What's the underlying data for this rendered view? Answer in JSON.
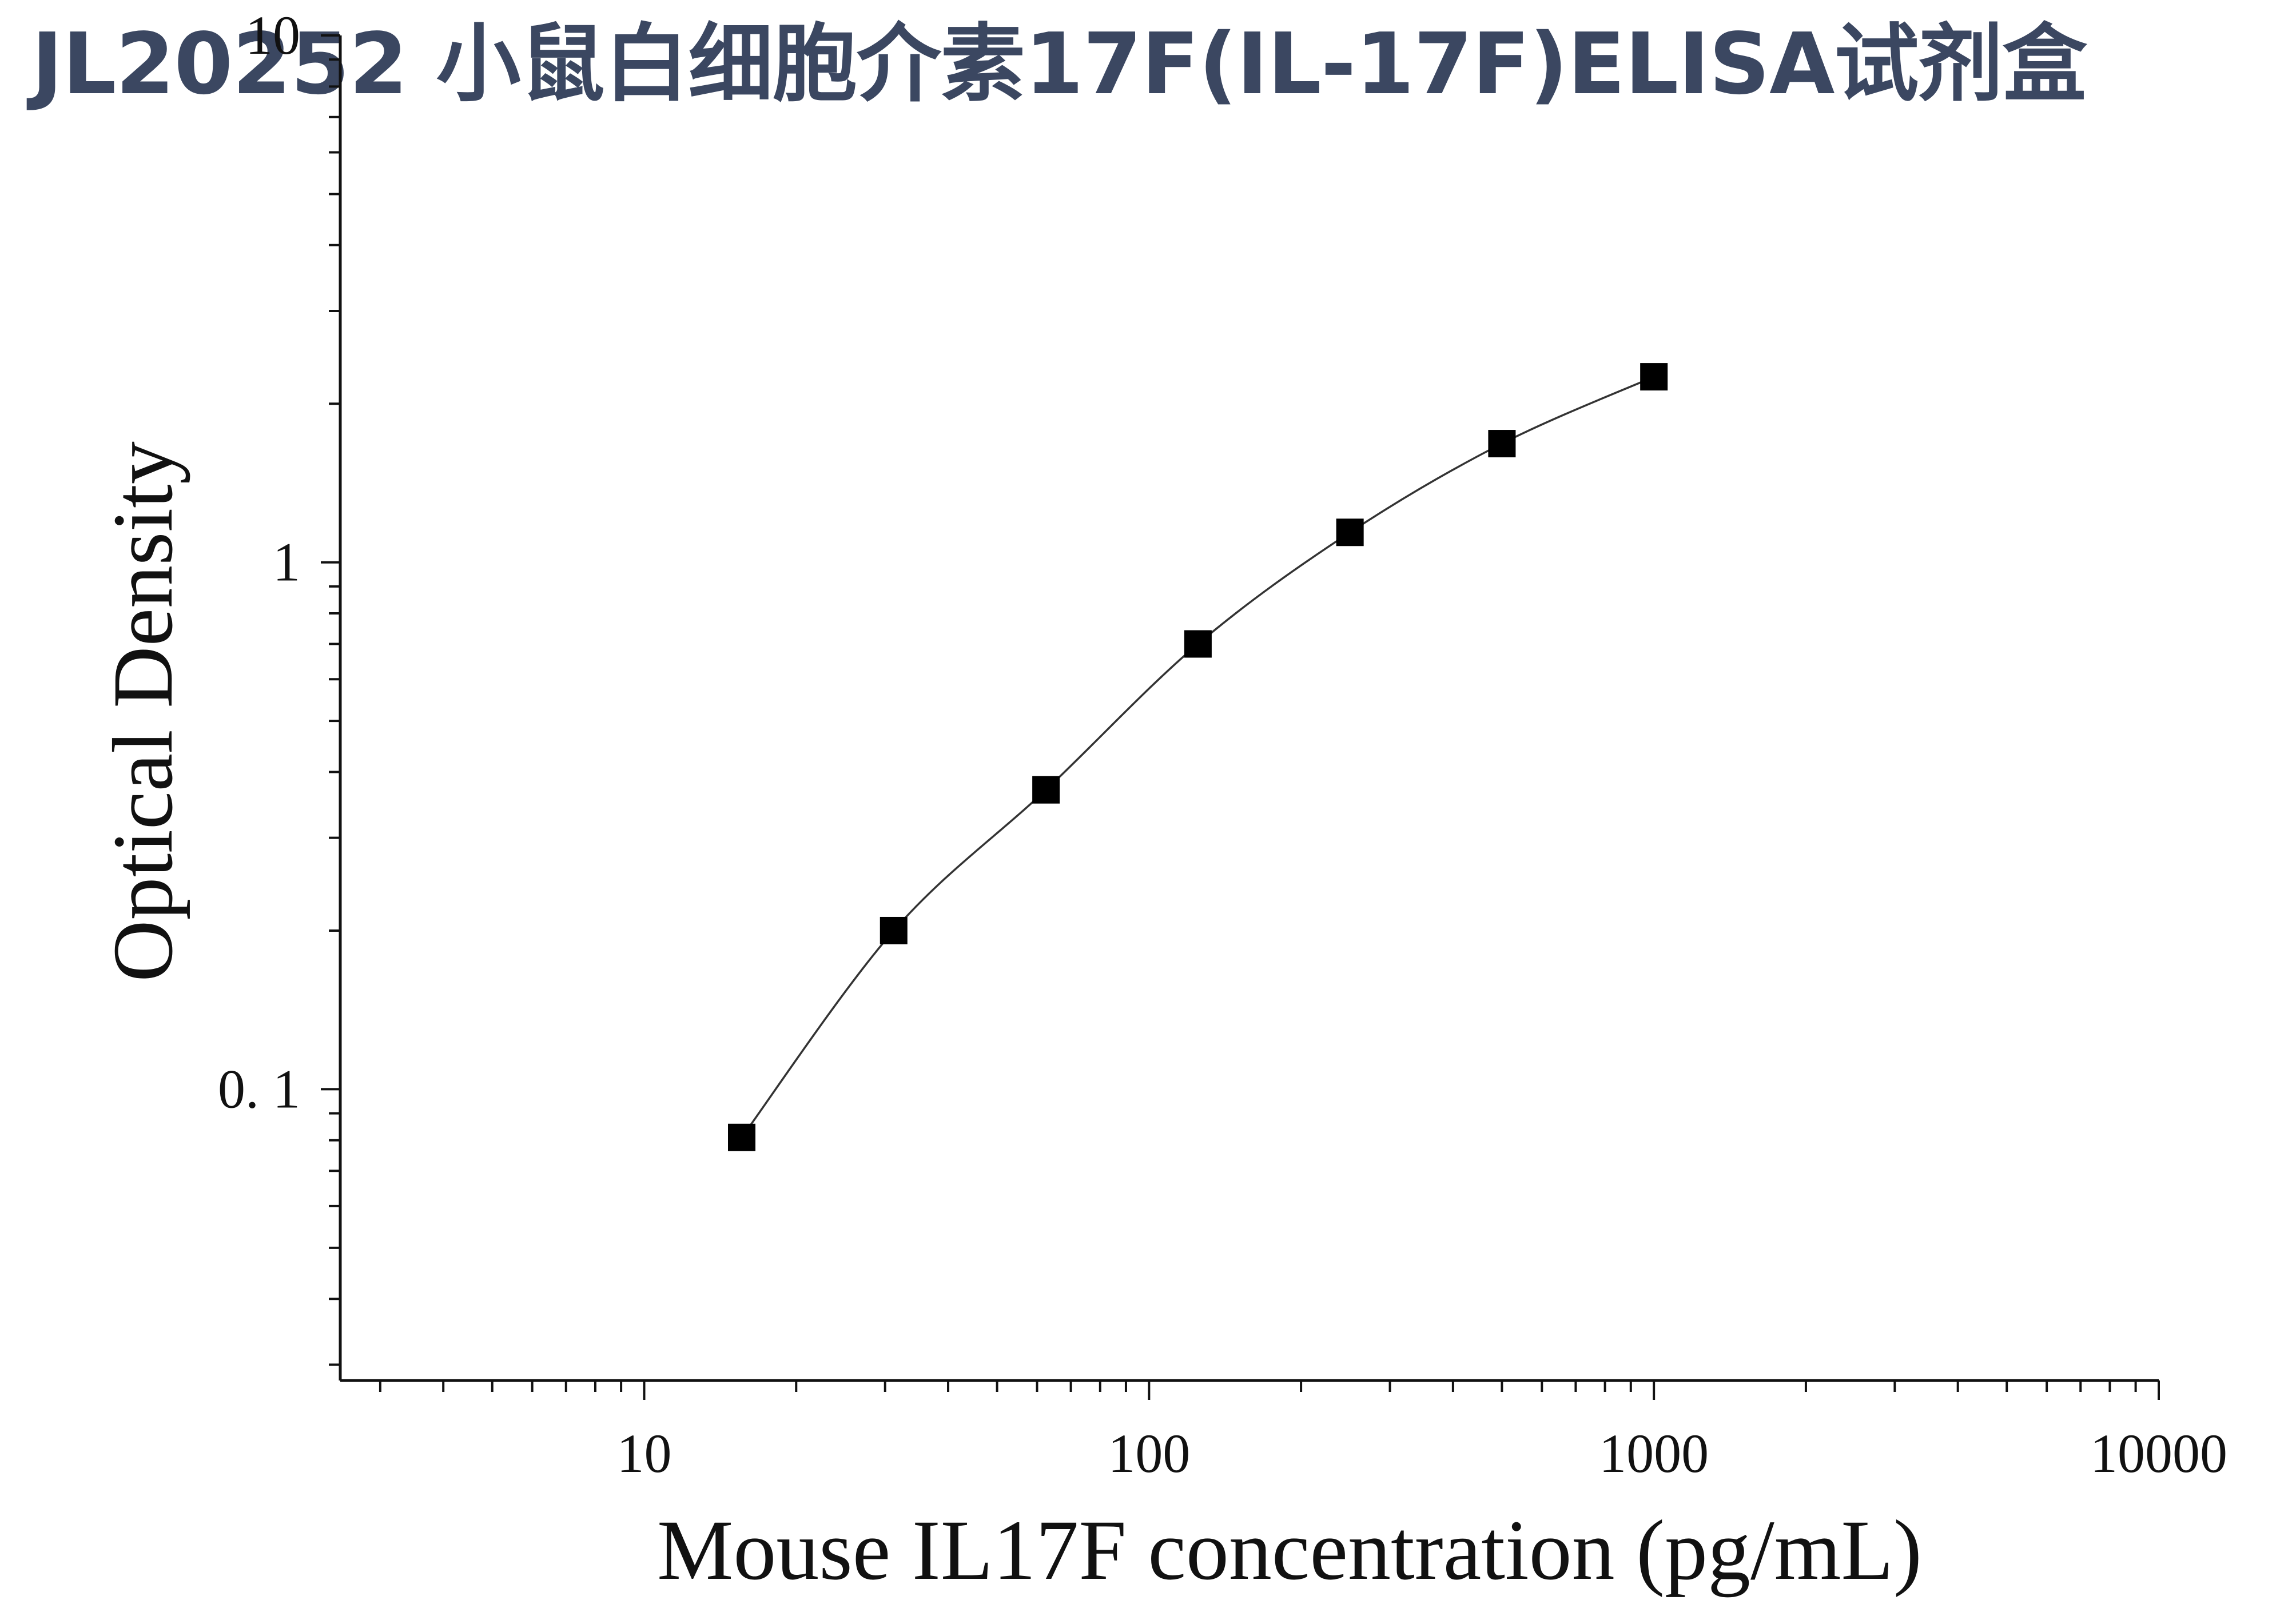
{
  "banner": {
    "title": "JL20252 小鼠白细胞介素17F(IL-17F)ELISA试剂盒",
    "color": "#3b4761"
  },
  "chart_data": {
    "type": "scatter",
    "title": "",
    "xlabel": "Mouse IL17F concentration (pg/mL)",
    "ylabel": "Optical Density",
    "x_scale": "log",
    "y_scale": "log",
    "xlim": [
      2.5,
      10000
    ],
    "ylim": [
      0.028,
      10
    ],
    "x_ticks": [
      10,
      100,
      1000,
      10000
    ],
    "x_tick_labels": [
      "10",
      "100",
      "1000",
      "10000"
    ],
    "y_ticks": [
      0.1,
      1,
      10
    ],
    "y_tick_labels": [
      "0. 1",
      "1",
      "10"
    ],
    "grid": false,
    "legend": "none",
    "series": [
      {
        "x": [
          15.6,
          31.2,
          62.5,
          125,
          250,
          500,
          1000
        ],
        "y": [
          0.081,
          0.2,
          0.37,
          0.7,
          1.14,
          1.68,
          2.25
        ],
        "marker": "square",
        "color": "#000000",
        "fit_line": true
      }
    ]
  }
}
